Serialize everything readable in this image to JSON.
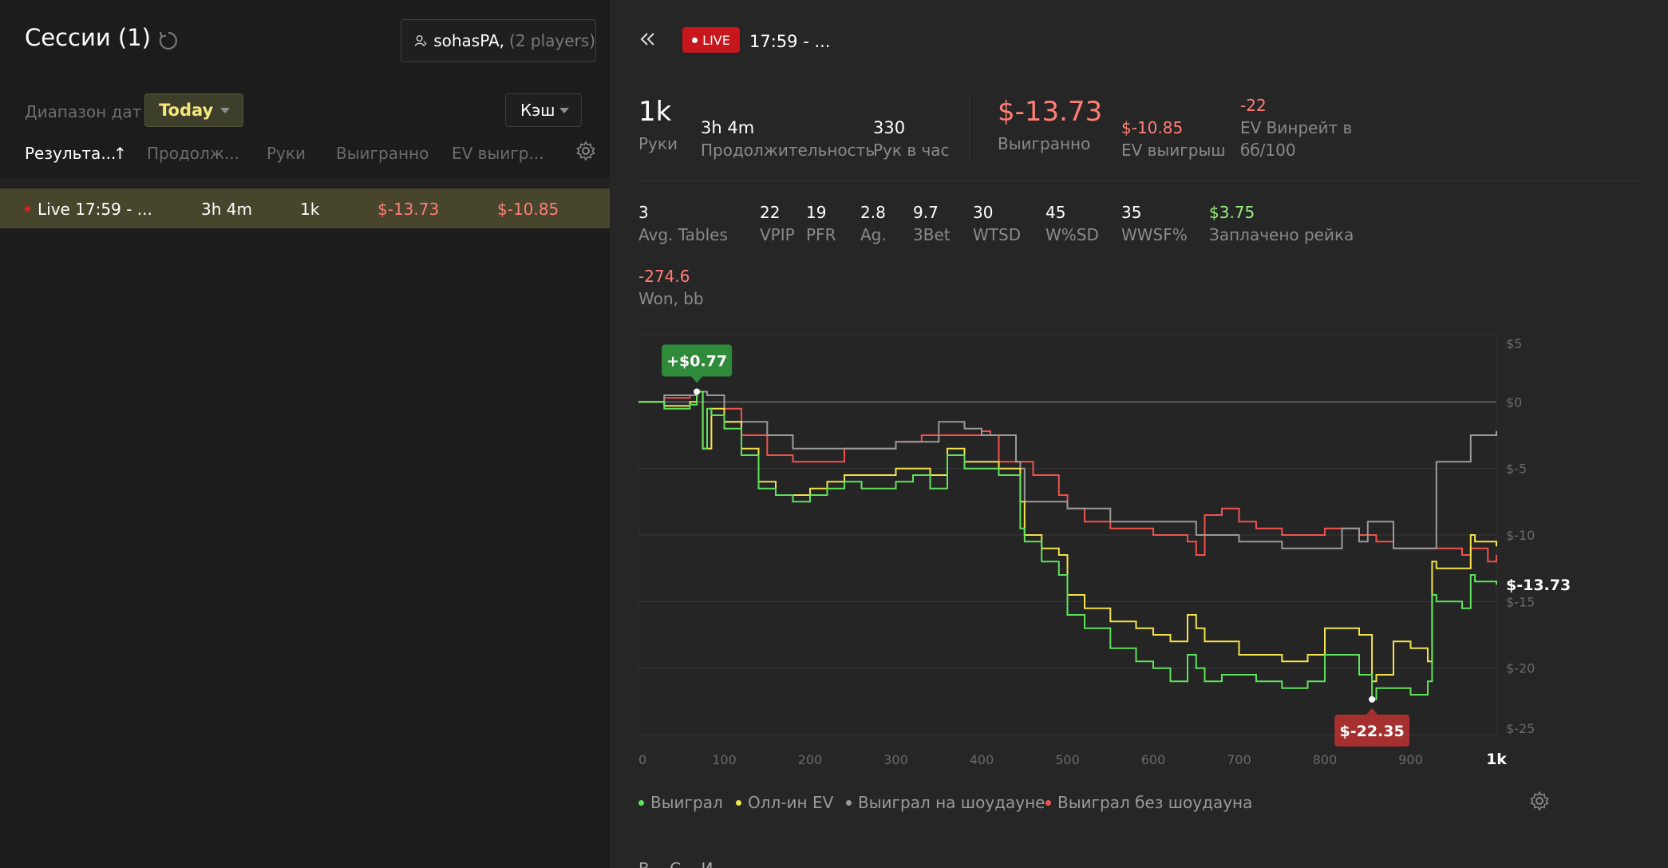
{
  "sessions": {
    "title": "Сессии (1)",
    "player": {
      "name": "sohasPA,",
      "count": "(2 players)"
    },
    "date_range_label": "Диапазон дат",
    "date_range_value": "Today",
    "game_type": "Кэш",
    "columns": [
      "Результа...",
      "Продолж...",
      "Руки",
      "Выигранно",
      "EV выигр..."
    ],
    "sort_arrow": "↑",
    "rows": [
      {
        "name": "Live 17:59 - ...",
        "duration": "3h 4m",
        "hands": "1k",
        "won": "$-13.73",
        "ev": "$-10.85"
      }
    ]
  },
  "detail": {
    "live_badge": "LIVE",
    "title": "17:59 - ...",
    "top_stats": [
      {
        "value": "1k",
        "label": "Руки"
      },
      {
        "value": "3h 4m",
        "label": "Продолжительность"
      },
      {
        "value": "330",
        "label": "Рук в час"
      }
    ],
    "won": {
      "value": "$-13.73",
      "label": "Выигранно"
    },
    "ev_won": {
      "value": "$-10.85",
      "label": "EV выигрыш"
    },
    "ev_winrate": {
      "value": "-22",
      "label_line1": "EV Винрейт в",
      "label_line2": "бб/100"
    },
    "stats": [
      {
        "value": "3",
        "label": "Avg. Tables"
      },
      {
        "value": "22",
        "label": "VPIP"
      },
      {
        "value": "19",
        "label": "PFR"
      },
      {
        "value": "2.8",
        "label": "Ag."
      },
      {
        "value": "9.7",
        "label": "3Bet"
      },
      {
        "value": "30",
        "label": "WTSD"
      },
      {
        "value": "45",
        "label": "W%SD"
      },
      {
        "value": "35",
        "label": "WWSF%"
      },
      {
        "value": "$3.75",
        "label": "Заплачено рейка"
      }
    ],
    "won_bb": {
      "value": "-274.6",
      "label": "Won, bb"
    },
    "legend": [
      "Выиграл",
      "Олл-ин EV",
      "Выиграл на шоудауне",
      "Выиграл без шоудауна"
    ],
    "bottom_text": "В...   С...   И..."
  },
  "colors": {
    "won": "#5fe25b",
    "allin_ev": "#f2e24b",
    "showdown": "#9a9a9a",
    "non_showdown": "#f0524f",
    "accent_live": "#c8161d"
  },
  "chart_data": {
    "type": "line",
    "x_ticks": [
      "0",
      "100",
      "200",
      "300",
      "400",
      "500",
      "600",
      "700",
      "800",
      "900",
      "1k"
    ],
    "y_ticks": [
      "$5",
      "$0",
      "$-5",
      "$-10",
      "$-15",
      "$-20",
      "$-25"
    ],
    "xlim": [
      0,
      1000
    ],
    "ylim": [
      -25,
      5
    ],
    "max_annotation": {
      "x": 68,
      "y": 0.77,
      "label": "+$0.77"
    },
    "min_annotation": {
      "x": 855,
      "y": -22.35,
      "label": "$-22.35"
    },
    "end_label": "$-13.73",
    "series": [
      {
        "name": "Выиграл",
        "color": "#5fe25b",
        "x": [
          0,
          30,
          60,
          68,
          75,
          80,
          85,
          100,
          120,
          140,
          160,
          180,
          200,
          220,
          240,
          260,
          280,
          300,
          320,
          340,
          360,
          380,
          400,
          420,
          440,
          445,
          450,
          470,
          490,
          500,
          520,
          550,
          580,
          600,
          620,
          640,
          650,
          660,
          680,
          700,
          720,
          750,
          780,
          800,
          820,
          840,
          855,
          860,
          880,
          900,
          920,
          925,
          930,
          960,
          970,
          975,
          1000
        ],
        "y": [
          0,
          -0.5,
          -0.2,
          0.77,
          -3.5,
          -0.5,
          -1,
          -2,
          -4,
          -6.5,
          -7,
          -7.5,
          -7,
          -6.5,
          -6,
          -6.5,
          -6.5,
          -6,
          -5.5,
          -6.5,
          -4,
          -5,
          -5,
          -5.5,
          -5.5,
          -9.5,
          -10.5,
          -12,
          -13,
          -16,
          -17,
          -18.5,
          -19.5,
          -20,
          -21,
          -19,
          -20,
          -21,
          -20.5,
          -20.5,
          -21,
          -21.5,
          -21,
          -19,
          -19,
          -20.5,
          -22.35,
          -21.5,
          -21.5,
          -22,
          -21,
          -14.5,
          -15,
          -15.5,
          -13,
          -13.5,
          -13.73
        ]
      },
      {
        "name": "Олл-ин EV",
        "color": "#f2e24b",
        "x": [
          0,
          30,
          60,
          68,
          75,
          85,
          100,
          120,
          140,
          160,
          180,
          200,
          220,
          240,
          260,
          280,
          300,
          320,
          340,
          360,
          380,
          400,
          420,
          440,
          445,
          450,
          470,
          490,
          500,
          520,
          550,
          580,
          600,
          620,
          640,
          650,
          660,
          680,
          700,
          720,
          750,
          780,
          800,
          820,
          840,
          855,
          860,
          880,
          900,
          920,
          925,
          930,
          960,
          970,
          975,
          1000
        ],
        "y": [
          0,
          -0.3,
          0,
          0.77,
          -3.5,
          -0.5,
          -1.5,
          -3.5,
          -6,
          -7,
          -7,
          -6.5,
          -6,
          -5.5,
          -5.5,
          -5.5,
          -5,
          -5,
          -5.5,
          -3.5,
          -4.5,
          -4.5,
          -5,
          -5,
          -7.5,
          -10,
          -11,
          -11.5,
          -14.5,
          -15.5,
          -16.5,
          -17,
          -17.5,
          -18,
          -16,
          -17,
          -18,
          -18,
          -19,
          -19,
          -19.5,
          -19,
          -17,
          -17,
          -17.5,
          -21,
          -20.5,
          -18,
          -18.5,
          -19.5,
          -12,
          -12.5,
          -12.5,
          -10,
          -10.5,
          -10.85
        ]
      },
      {
        "name": "Выиграл на шоудауне",
        "color": "#9a9a9a",
        "x": [
          0,
          30,
          60,
          68,
          80,
          100,
          120,
          150,
          180,
          200,
          250,
          300,
          340,
          350,
          380,
          400,
          420,
          440,
          445,
          450,
          470,
          490,
          500,
          550,
          600,
          650,
          700,
          750,
          800,
          820,
          830,
          840,
          850,
          860,
          880,
          900,
          920,
          930,
          950,
          970,
          1000
        ],
        "y": [
          0,
          0.5,
          0.5,
          0.77,
          0.5,
          -1.5,
          -1.5,
          -2.5,
          -3.5,
          -3.5,
          -3.5,
          -3,
          -3,
          -1.5,
          -2,
          -2.5,
          -2.5,
          -4.5,
          -5,
          -7.5,
          -7.5,
          -7.5,
          -8,
          -9,
          -9,
          -10,
          -10.5,
          -11,
          -11,
          -9.5,
          -9.5,
          -10.5,
          -9,
          -9,
          -11,
          -11,
          -11,
          -4.5,
          -4.5,
          -2.5,
          -2.2
        ]
      },
      {
        "name": "Выиграл без шоудауна",
        "color": "#f0524f",
        "x": [
          0,
          30,
          60,
          68,
          80,
          100,
          120,
          150,
          180,
          200,
          240,
          270,
          300,
          330,
          360,
          400,
          410,
          420,
          440,
          460,
          490,
          500,
          520,
          550,
          580,
          600,
          620,
          640,
          650,
          660,
          680,
          700,
          720,
          750,
          780,
          800,
          820,
          840,
          860,
          880,
          900,
          920,
          940,
          960,
          970,
          980,
          990,
          1000
        ],
        "y": [
          0,
          0.3,
          0.5,
          0.77,
          0.5,
          -0.5,
          -2.5,
          -4,
          -4.5,
          -4.5,
          -3.5,
          -3.5,
          -3,
          -2.5,
          -2.5,
          -2.2,
          -2.5,
          -4.5,
          -4.5,
          -5.5,
          -7,
          -8,
          -9,
          -9.5,
          -9.5,
          -10,
          -10,
          -10.5,
          -11.5,
          -8.5,
          -8,
          -9,
          -9.5,
          -10,
          -10,
          -9.5,
          -9.5,
          -10,
          -10.5,
          -11,
          -11,
          -11,
          -11,
          -11.5,
          -11,
          -11,
          -12,
          -11.5
        ]
      }
    ]
  }
}
